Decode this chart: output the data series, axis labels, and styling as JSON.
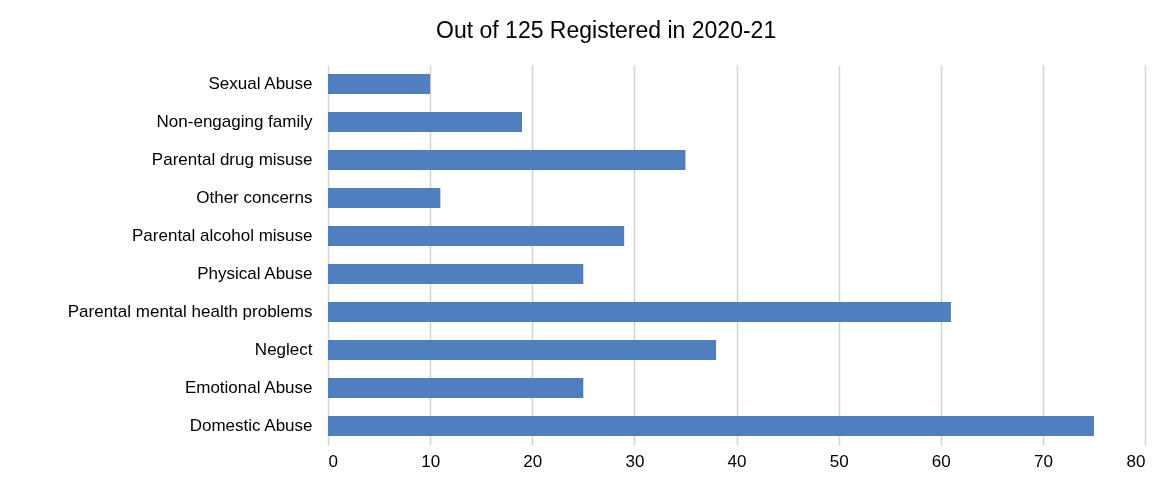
{
  "chart_data": {
    "type": "bar",
    "orientation": "horizontal",
    "title": "Out of 125 Registered in 2020-21",
    "categories": [
      "Sexual Abuse",
      "Non-engaging family",
      "Parental drug misuse",
      "Other concerns",
      "Parental alcohol misuse",
      "Physical Abuse",
      "Parental mental health problems",
      "Neglect",
      "Emotional Abuse",
      "Domestic Abuse"
    ],
    "values": [
      10,
      19,
      35,
      11,
      29,
      25,
      61,
      38,
      25,
      75
    ],
    "color": "#4f7fbe",
    "xlim": [
      0,
      80
    ],
    "xticks": [
      0,
      10,
      20,
      30,
      40,
      50,
      60,
      70,
      80
    ],
    "grid": "x"
  }
}
